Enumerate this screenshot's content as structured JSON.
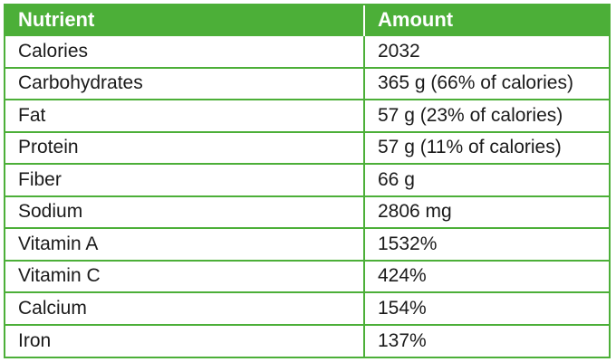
{
  "table": {
    "headers": [
      "Nutrient",
      "Amount"
    ],
    "rows": [
      [
        "Calories",
        "2032"
      ],
      [
        "Carbohydrates",
        "365 g (66% of calories)"
      ],
      [
        "Fat",
        "57 g (23% of calories)"
      ],
      [
        "Protein",
        "57 g (11% of calories)"
      ],
      [
        "Fiber",
        "66 g"
      ],
      [
        "Sodium",
        "2806 mg"
      ],
      [
        "Vitamin A",
        "1532%"
      ],
      [
        "Vitamin C",
        "424%"
      ],
      [
        "Calcium",
        "154%"
      ],
      [
        "Iron",
        "137%"
      ]
    ]
  },
  "colors": {
    "header_background": "#4caf38",
    "header_text": "#ffffff",
    "border": "#4caf38",
    "body_text": "#1a1a1a"
  }
}
